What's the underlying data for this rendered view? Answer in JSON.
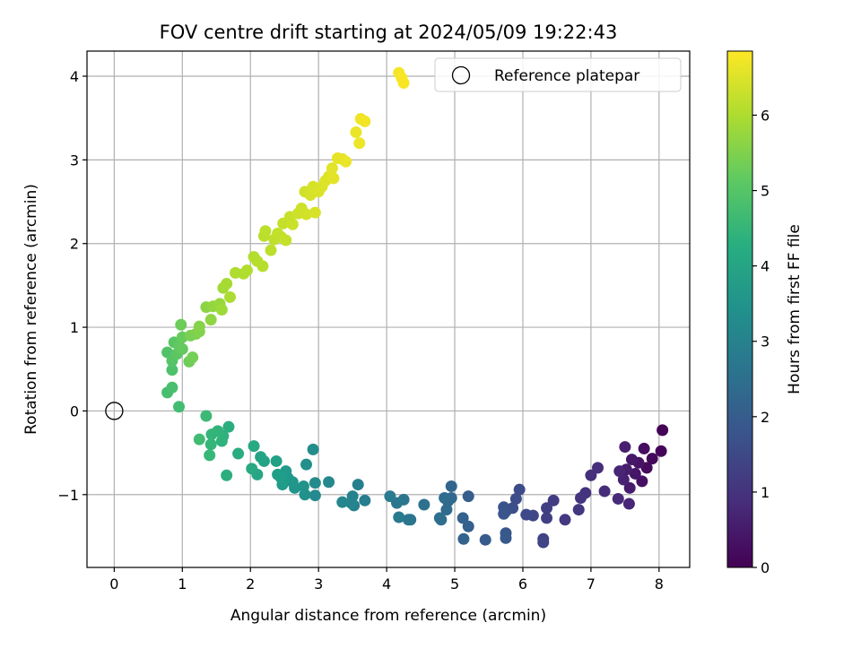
{
  "chart_data": {
    "type": "scatter",
    "title": "FOV centre drift starting at 2024/05/09 19:22:43",
    "xlabel": "Angular distance from reference (arcmin)",
    "ylabel": "Rotation from reference (arcmin)",
    "xlim": [
      -0.4,
      8.45
    ],
    "ylim": [
      -1.87,
      4.3
    ],
    "xticks": [
      0,
      1,
      2,
      3,
      4,
      5,
      6,
      7,
      8
    ],
    "yticks": [
      -1,
      0,
      1,
      2,
      3,
      4
    ],
    "xtick_labels": [
      "0",
      "1",
      "2",
      "3",
      "4",
      "5",
      "6",
      "7",
      "8"
    ],
    "ytick_labels": [
      "−1",
      "0",
      "1",
      "2",
      "3",
      "4"
    ],
    "grid": true,
    "legend": {
      "placement": "top-right",
      "entries": [
        {
          "label": "Reference platepar",
          "marker": "open-circle"
        }
      ]
    },
    "reference_point": {
      "x": 0,
      "y": 0
    },
    "colorbar": {
      "label": "Hours from first FF file",
      "colormap": "viridis",
      "range": [
        0,
        6.85
      ],
      "ticks": [
        0,
        1,
        2,
        3,
        4,
        5,
        6
      ],
      "tick_labels": [
        "0",
        "1",
        "2",
        "3",
        "4",
        "5",
        "6"
      ]
    },
    "points": [
      {
        "x": 8.05,
        "y": -0.23,
        "t": 0.05
      },
      {
        "x": 8.03,
        "y": -0.48,
        "t": 0.1
      },
      {
        "x": 7.9,
        "y": -0.57,
        "t": 0.15
      },
      {
        "x": 7.82,
        "y": -0.68,
        "t": 0.2
      },
      {
        "x": 7.78,
        "y": -0.45,
        "t": 0.25
      },
      {
        "x": 7.75,
        "y": -0.84,
        "t": 0.3
      },
      {
        "x": 7.7,
        "y": -0.62,
        "t": 0.35
      },
      {
        "x": 7.65,
        "y": -0.75,
        "t": 0.4
      },
      {
        "x": 7.6,
        "y": -0.58,
        "t": 0.45
      },
      {
        "x": 7.57,
        "y": -0.92,
        "t": 0.5
      },
      {
        "x": 7.52,
        "y": -0.7,
        "t": 0.55
      },
      {
        "x": 7.5,
        "y": -0.43,
        "t": 0.6
      },
      {
        "x": 7.48,
        "y": -0.82,
        "t": 0.65
      },
      {
        "x": 7.42,
        "y": -0.72,
        "t": 0.7
      },
      {
        "x": 7.56,
        "y": -1.11,
        "t": 0.75
      },
      {
        "x": 7.4,
        "y": -1.05,
        "t": 0.8
      },
      {
        "x": 7.2,
        "y": -0.96,
        "t": 0.85
      },
      {
        "x": 7.1,
        "y": -0.68,
        "t": 0.9
      },
      {
        "x": 7.0,
        "y": -0.77,
        "t": 0.95
      },
      {
        "x": 6.92,
        "y": -0.98,
        "t": 1.0
      },
      {
        "x": 6.85,
        "y": -1.04,
        "t": 1.05
      },
      {
        "x": 6.82,
        "y": -1.18,
        "t": 1.1
      },
      {
        "x": 6.62,
        "y": -1.3,
        "t": 1.15
      },
      {
        "x": 6.45,
        "y": -1.07,
        "t": 1.2
      },
      {
        "x": 6.35,
        "y": -1.16,
        "t": 1.25
      },
      {
        "x": 6.35,
        "y": -1.28,
        "t": 1.3
      },
      {
        "x": 6.3,
        "y": -1.53,
        "t": 1.35
      },
      {
        "x": 6.3,
        "y": -1.57,
        "t": 1.4
      },
      {
        "x": 6.15,
        "y": -1.25,
        "t": 1.45
      },
      {
        "x": 6.05,
        "y": -1.24,
        "t": 1.5
      },
      {
        "x": 5.95,
        "y": -0.94,
        "t": 1.55
      },
      {
        "x": 5.9,
        "y": -1.05,
        "t": 1.6
      },
      {
        "x": 5.85,
        "y": -1.16,
        "t": 1.65
      },
      {
        "x": 5.75,
        "y": -1.2,
        "t": 1.7
      },
      {
        "x": 5.72,
        "y": -1.15,
        "t": 1.75
      },
      {
        "x": 5.72,
        "y": -1.23,
        "t": 1.8
      },
      {
        "x": 5.75,
        "y": -1.46,
        "t": 1.85
      },
      {
        "x": 5.75,
        "y": -1.52,
        "t": 1.9
      },
      {
        "x": 5.45,
        "y": -1.54,
        "t": 1.95
      },
      {
        "x": 5.2,
        "y": -1.02,
        "t": 2.0
      },
      {
        "x": 5.2,
        "y": -1.38,
        "t": 2.05
      },
      {
        "x": 5.12,
        "y": -1.28,
        "t": 2.1
      },
      {
        "x": 5.13,
        "y": -1.53,
        "t": 2.15
      },
      {
        "x": 4.95,
        "y": -0.9,
        "t": 2.2
      },
      {
        "x": 4.95,
        "y": -1.04,
        "t": 2.25
      },
      {
        "x": 4.9,
        "y": -1.08,
        "t": 2.3
      },
      {
        "x": 4.88,
        "y": -1.18,
        "t": 2.35
      },
      {
        "x": 4.85,
        "y": -1.04,
        "t": 2.4
      },
      {
        "x": 4.8,
        "y": -1.3,
        "t": 2.45
      },
      {
        "x": 4.78,
        "y": -1.28,
        "t": 2.5
      },
      {
        "x": 4.55,
        "y": -1.12,
        "t": 2.55
      },
      {
        "x": 4.35,
        "y": -1.3,
        "t": 2.6
      },
      {
        "x": 4.32,
        "y": -1.3,
        "t": 2.65
      },
      {
        "x": 4.25,
        "y": -1.06,
        "t": 2.7
      },
      {
        "x": 4.15,
        "y": -1.1,
        "t": 2.75
      },
      {
        "x": 4.18,
        "y": -1.27,
        "t": 2.8
      },
      {
        "x": 4.05,
        "y": -1.02,
        "t": 2.85
      },
      {
        "x": 3.68,
        "y": -1.07,
        "t": 2.9
      },
      {
        "x": 3.58,
        "y": -0.88,
        "t": 2.95
      },
      {
        "x": 3.52,
        "y": -1.13,
        "t": 3.0
      },
      {
        "x": 3.5,
        "y": -1.02,
        "t": 3.05
      },
      {
        "x": 3.48,
        "y": -1.1,
        "t": 3.1
      },
      {
        "x": 3.35,
        "y": -1.09,
        "t": 3.15
      },
      {
        "x": 3.15,
        "y": -0.85,
        "t": 3.2
      },
      {
        "x": 2.95,
        "y": -1.01,
        "t": 3.25
      },
      {
        "x": 2.95,
        "y": -0.86,
        "t": 3.3
      },
      {
        "x": 2.92,
        "y": -0.46,
        "t": 3.35
      },
      {
        "x": 2.82,
        "y": -0.64,
        "t": 3.4
      },
      {
        "x": 2.8,
        "y": -1.0,
        "t": 3.45
      },
      {
        "x": 2.78,
        "y": -0.9,
        "t": 3.5
      },
      {
        "x": 2.65,
        "y": -0.92,
        "t": 3.55
      },
      {
        "x": 2.62,
        "y": -0.85,
        "t": 3.6
      },
      {
        "x": 2.55,
        "y": -0.8,
        "t": 3.65
      },
      {
        "x": 2.52,
        "y": -0.72,
        "t": 3.7
      },
      {
        "x": 2.47,
        "y": -0.88,
        "t": 3.75
      },
      {
        "x": 2.45,
        "y": -0.8,
        "t": 3.8
      },
      {
        "x": 2.4,
        "y": -0.76,
        "t": 3.85
      },
      {
        "x": 2.38,
        "y": -0.6,
        "t": 3.9
      },
      {
        "x": 2.2,
        "y": -0.6,
        "t": 3.95
      },
      {
        "x": 2.15,
        "y": -0.55,
        "t": 4.0
      },
      {
        "x": 2.1,
        "y": -0.76,
        "t": 4.05
      },
      {
        "x": 2.05,
        "y": -0.42,
        "t": 4.1
      },
      {
        "x": 2.02,
        "y": -0.69,
        "t": 4.15
      },
      {
        "x": 1.82,
        "y": -0.51,
        "t": 4.2
      },
      {
        "x": 1.68,
        "y": -0.19,
        "t": 4.25
      },
      {
        "x": 1.65,
        "y": -0.77,
        "t": 4.3
      },
      {
        "x": 1.6,
        "y": -0.3,
        "t": 4.35
      },
      {
        "x": 1.58,
        "y": -0.36,
        "t": 4.4
      },
      {
        "x": 1.52,
        "y": -0.24,
        "t": 4.45
      },
      {
        "x": 1.43,
        "y": -0.28,
        "t": 4.5
      },
      {
        "x": 1.42,
        "y": -0.4,
        "t": 4.55
      },
      {
        "x": 1.4,
        "y": -0.53,
        "t": 4.6
      },
      {
        "x": 1.35,
        "y": -0.06,
        "t": 4.65
      },
      {
        "x": 1.25,
        "y": -0.34,
        "t": 4.7
      },
      {
        "x": 0.95,
        "y": 0.05,
        "t": 4.75
      },
      {
        "x": 0.78,
        "y": 0.22,
        "t": 4.8
      },
      {
        "x": 0.85,
        "y": 0.28,
        "t": 4.85
      },
      {
        "x": 0.85,
        "y": 0.49,
        "t": 4.9
      },
      {
        "x": 0.78,
        "y": 0.7,
        "t": 4.95
      },
      {
        "x": 0.85,
        "y": 0.6,
        "t": 5.0
      },
      {
        "x": 0.88,
        "y": 0.82,
        "t": 5.05
      },
      {
        "x": 0.92,
        "y": 0.68,
        "t": 5.1
      },
      {
        "x": 0.95,
        "y": 0.78,
        "t": 5.15
      },
      {
        "x": 1.0,
        "y": 0.74,
        "t": 5.2
      },
      {
        "x": 1.0,
        "y": 0.88,
        "t": 5.25
      },
      {
        "x": 0.98,
        "y": 1.03,
        "t": 5.3
      },
      {
        "x": 1.1,
        "y": 0.59,
        "t": 5.35
      },
      {
        "x": 1.15,
        "y": 0.64,
        "t": 5.4
      },
      {
        "x": 1.12,
        "y": 0.9,
        "t": 5.45
      },
      {
        "x": 1.2,
        "y": 0.92,
        "t": 5.5
      },
      {
        "x": 1.25,
        "y": 0.95,
        "t": 5.55
      },
      {
        "x": 1.25,
        "y": 1.01,
        "t": 5.6
      },
      {
        "x": 1.35,
        "y": 1.24,
        "t": 5.65
      },
      {
        "x": 1.42,
        "y": 1.09,
        "t": 5.7
      },
      {
        "x": 1.45,
        "y": 1.25,
        "t": 5.75
      },
      {
        "x": 1.55,
        "y": 1.28,
        "t": 5.8
      },
      {
        "x": 1.58,
        "y": 1.21,
        "t": 5.85
      },
      {
        "x": 1.6,
        "y": 1.47,
        "t": 5.9
      },
      {
        "x": 1.65,
        "y": 1.52,
        "t": 5.95
      },
      {
        "x": 1.7,
        "y": 1.36,
        "t": 6.0
      },
      {
        "x": 1.78,
        "y": 1.65,
        "t": 6.02
      },
      {
        "x": 1.9,
        "y": 1.64,
        "t": 6.04
      },
      {
        "x": 1.95,
        "y": 1.68,
        "t": 6.06
      },
      {
        "x": 2.05,
        "y": 1.84,
        "t": 6.08
      },
      {
        "x": 2.1,
        "y": 1.79,
        "t": 6.1
      },
      {
        "x": 2.18,
        "y": 1.73,
        "t": 6.12
      },
      {
        "x": 2.2,
        "y": 2.09,
        "t": 6.14
      },
      {
        "x": 2.22,
        "y": 2.15,
        "t": 6.16
      },
      {
        "x": 2.3,
        "y": 1.92,
        "t": 6.18
      },
      {
        "x": 2.35,
        "y": 2.05,
        "t": 6.2
      },
      {
        "x": 2.4,
        "y": 2.12,
        "t": 6.22
      },
      {
        "x": 2.45,
        "y": 2.08,
        "t": 6.24
      },
      {
        "x": 2.48,
        "y": 2.24,
        "t": 6.26
      },
      {
        "x": 2.52,
        "y": 2.04,
        "t": 6.28
      },
      {
        "x": 2.58,
        "y": 2.32,
        "t": 6.3
      },
      {
        "x": 2.62,
        "y": 2.23,
        "t": 6.32
      },
      {
        "x": 2.7,
        "y": 2.36,
        "t": 6.34
      },
      {
        "x": 2.75,
        "y": 2.42,
        "t": 6.36
      },
      {
        "x": 2.8,
        "y": 2.62,
        "t": 6.38
      },
      {
        "x": 2.82,
        "y": 2.35,
        "t": 6.4
      },
      {
        "x": 2.88,
        "y": 2.58,
        "t": 6.42
      },
      {
        "x": 2.92,
        "y": 2.68,
        "t": 6.44
      },
      {
        "x": 2.95,
        "y": 2.37,
        "t": 6.46
      },
      {
        "x": 3.0,
        "y": 2.62,
        "t": 6.48
      },
      {
        "x": 3.05,
        "y": 2.68,
        "t": 6.5
      },
      {
        "x": 3.1,
        "y": 2.75,
        "t": 6.52
      },
      {
        "x": 3.15,
        "y": 2.8,
        "t": 6.54
      },
      {
        "x": 3.2,
        "y": 2.9,
        "t": 6.56
      },
      {
        "x": 3.22,
        "y": 2.78,
        "t": 6.58
      },
      {
        "x": 3.28,
        "y": 3.02,
        "t": 6.6
      },
      {
        "x": 3.35,
        "y": 3.01,
        "t": 6.62
      },
      {
        "x": 3.4,
        "y": 2.98,
        "t": 6.64
      },
      {
        "x": 3.55,
        "y": 3.33,
        "t": 6.66
      },
      {
        "x": 3.6,
        "y": 3.2,
        "t": 6.68
      },
      {
        "x": 3.62,
        "y": 3.49,
        "t": 6.7
      },
      {
        "x": 3.68,
        "y": 3.46,
        "t": 6.72
      },
      {
        "x": 4.18,
        "y": 4.04,
        "t": 6.76
      },
      {
        "x": 4.22,
        "y": 3.98,
        "t": 6.78
      },
      {
        "x": 4.25,
        "y": 3.92,
        "t": 6.8
      }
    ]
  }
}
